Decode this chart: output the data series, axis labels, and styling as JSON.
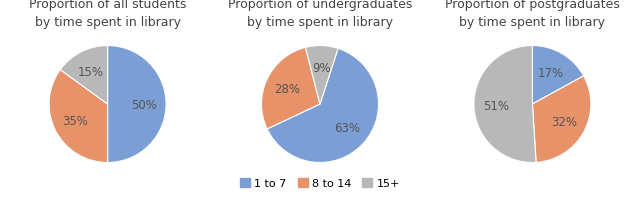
{
  "charts": [
    {
      "title": "Proportion of all students\nby time spent in library",
      "values": [
        50,
        35,
        15
      ],
      "labels": [
        "50%",
        "35%",
        "15%"
      ],
      "startangle": 90
    },
    {
      "title": "Proportion of undergraduates\nby time spent in library",
      "values": [
        63,
        28,
        9
      ],
      "labels": [
        "63%",
        "28%",
        "9%"
      ],
      "startangle": 72
    },
    {
      "title": "Proportion of postgraduates\nby time spent in library",
      "values": [
        17,
        32,
        51
      ],
      "labels": [
        "17%",
        "32%",
        "51%"
      ],
      "startangle": 90
    }
  ],
  "colors": [
    "#7b9fd4",
    "#e8926a",
    "#b8b8b8"
  ],
  "legend_labels": [
    "1 to 7",
    "8 to 14",
    "15+"
  ],
  "legend_colors": [
    "#7b9fd4",
    "#e8926a",
    "#b8b8b8"
  ],
  "background_color": "#ffffff",
  "title_fontsize": 9,
  "label_fontsize": 8.5,
  "label_color": "#555555"
}
